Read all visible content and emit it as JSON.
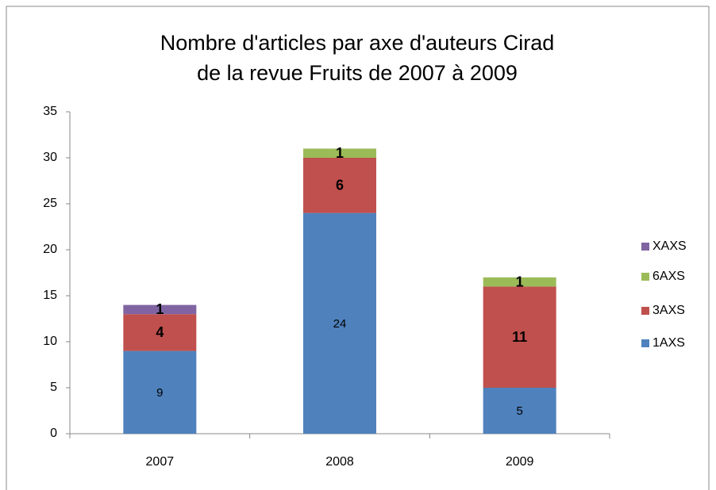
{
  "chart_data": {
    "type": "stacked_bar",
    "title": [
      "Nombre d'articles par axe d'auteurs Cirad",
      "de la revue Fruits de 2007 à 2009"
    ],
    "categories": [
      "2007",
      "2008",
      "2009"
    ],
    "series": [
      {
        "name": "1AXS",
        "color": "#4f81bd",
        "values": [
          9,
          24,
          5
        ]
      },
      {
        "name": "3AXS",
        "color": "#c0504d",
        "values": [
          4,
          6,
          11
        ]
      },
      {
        "name": "6AXS",
        "color": "#9bbb59",
        "values": [
          null,
          1,
          1
        ]
      },
      {
        "name": "XAXS",
        "color": "#8064a2",
        "values": [
          1,
          null,
          null
        ]
      }
    ],
    "ylim": [
      0,
      35
    ],
    "yticks": [
      0,
      5,
      10,
      15,
      20,
      25,
      30,
      35
    ],
    "legend": "right"
  }
}
